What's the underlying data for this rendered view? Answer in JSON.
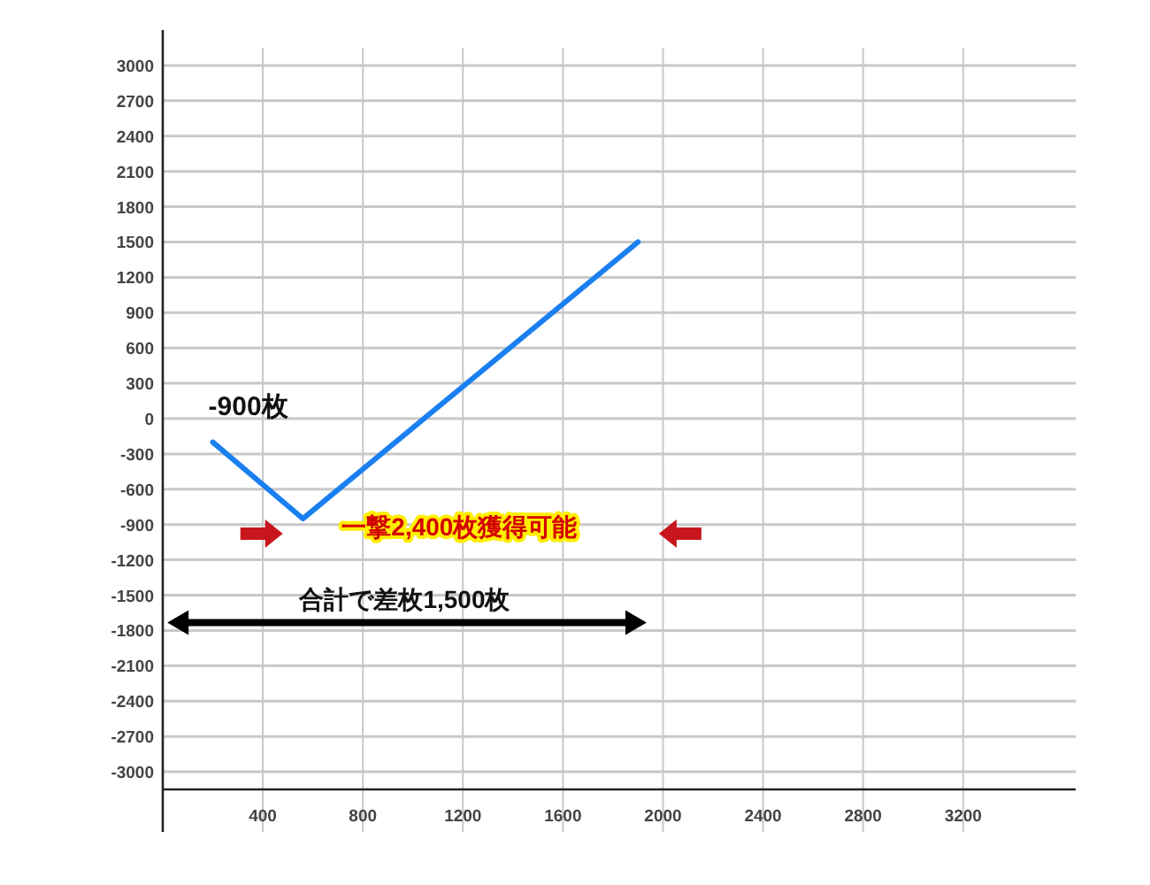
{
  "chart_data": {
    "type": "line",
    "x": [
      200,
      560,
      1900
    ],
    "series": [
      {
        "color": "#1a7ff0",
        "values": [
          -200,
          -850,
          1500
        ]
      }
    ],
    "xlim": [
      0,
      3650
    ],
    "ylim": [
      -3150,
      3150
    ],
    "xticks": [
      400,
      800,
      1200,
      1600,
      2000,
      2400,
      2800,
      3200
    ],
    "yticks": [
      -3000,
      -2700,
      -2400,
      -2100,
      -1800,
      -1500,
      -1200,
      -900,
      -600,
      -300,
      0,
      300,
      600,
      900,
      1200,
      1500,
      1800,
      2100,
      2400,
      2700,
      3000
    ],
    "grid": true,
    "annotations": [
      "-900枚",
      "一撃2,400枚獲得可能",
      "合計で差枚1,500枚"
    ]
  }
}
